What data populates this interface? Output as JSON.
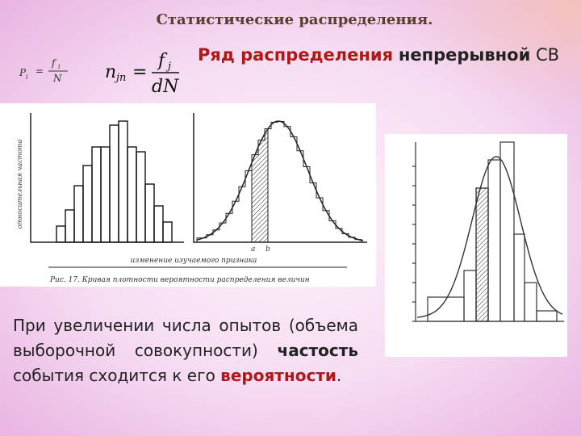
{
  "header": {
    "title": "Статистические распределения.",
    "subtitle": {
      "part1": "Ряд распределения",
      "part2": "непрерывной",
      "part3": "СВ"
    }
  },
  "formulas": {
    "relative": {
      "left": "P",
      "left_index": "i",
      "equals": "=",
      "numerator": "f",
      "numerator_index": "i",
      "denominator": "N"
    },
    "density": {
      "left": "n",
      "left_index": "jn",
      "equals": "=",
      "numerator": "f",
      "numerator_index": "j",
      "denominator": "dN"
    }
  },
  "figure": {
    "caption": "Рис. 17. Кривая плотности вероятности распределения величин",
    "x_label": "изменение изучаемого признака",
    "y_label": "относительная частота",
    "mark_a": "a",
    "mark_b": "b"
  },
  "body": {
    "text1": "При увеличении числа опытов (объема выборочной совокупности)",
    "bold1": "частость",
    "text2": "события сходится к его",
    "bold2": "вероятности",
    "text3": "."
  }
}
